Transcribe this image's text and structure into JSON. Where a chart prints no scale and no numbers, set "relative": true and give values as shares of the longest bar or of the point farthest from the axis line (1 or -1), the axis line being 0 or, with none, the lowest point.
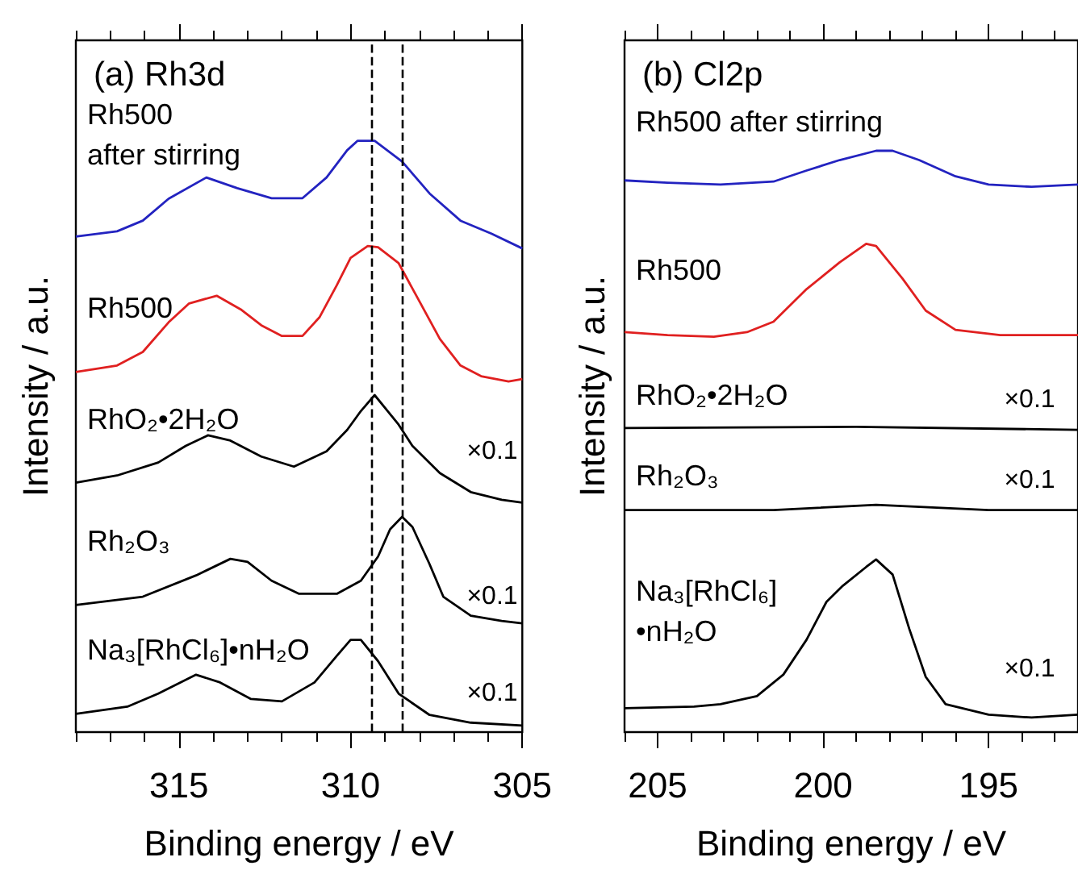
{
  "chart_data": [
    {
      "type": "line",
      "title": "(a) Rh3d",
      "xlabel": "Binding energy / eV",
      "ylabel": "Intensity / a.u.",
      "relative": true,
      "marker": "none",
      "xlim": [
        318,
        305
      ],
      "xticks": [
        {
          "value": 318,
          "label": null
        },
        {
          "value": 317,
          "label": null
        },
        {
          "value": 316,
          "label": null
        },
        315,
        {
          "value": 314,
          "label": null
        },
        {
          "value": 313,
          "label": null
        },
        {
          "value": 312,
          "label": null
        },
        {
          "value": 311,
          "label": null
        },
        310,
        {
          "value": 309,
          "label": null
        },
        {
          "value": 308,
          "label": null
        },
        {
          "value": 307,
          "label": null
        },
        {
          "value": 306,
          "label": null
        },
        305
      ],
      "series": [
        {
          "name": "Rh500\nafter stirring",
          "color": "#2323c0",
          "x": [
            318.0,
            316.8,
            316.05,
            315.3,
            314.2,
            313.3,
            312.3,
            311.4,
            310.7,
            310.1,
            309.8,
            309.3,
            308.5,
            307.7,
            306.8,
            305.9,
            305.0
          ],
          "values": [
            0.838,
            0.847,
            0.865,
            0.902,
            0.938,
            0.92,
            0.903,
            0.903,
            0.938,
            0.984,
            1.0,
            1.0,
            0.965,
            0.911,
            0.865,
            0.843,
            0.818
          ]
        },
        {
          "name": "Rh500",
          "color": "#e02020",
          "x": [
            318.0,
            316.8,
            316.05,
            315.3,
            314.7,
            313.9,
            313.2,
            312.6,
            312.0,
            311.4,
            310.9,
            310.4,
            310.0,
            309.5,
            309.2,
            308.6,
            308.0,
            307.4,
            306.8,
            306.2,
            305.4,
            305.0
          ],
          "values": [
            0.609,
            0.62,
            0.643,
            0.693,
            0.725,
            0.738,
            0.715,
            0.688,
            0.67,
            0.67,
            0.702,
            0.756,
            0.802,
            0.822,
            0.82,
            0.793,
            0.729,
            0.665,
            0.62,
            0.602,
            0.593,
            0.597
          ]
        },
        {
          "name": "RhO₂•2H₂O",
          "color": "#000000",
          "x": [
            318.0,
            316.8,
            315.6,
            314.8,
            314.15,
            313.5,
            312.6,
            311.65,
            310.7,
            310.1,
            309.7,
            309.3,
            308.6,
            308.2,
            307.4,
            306.5,
            305.6,
            305.0
          ],
          "values": [
            0.422,
            0.434,
            0.456,
            0.484,
            0.502,
            0.493,
            0.466,
            0.449,
            0.475,
            0.511,
            0.543,
            0.57,
            0.52,
            0.484,
            0.438,
            0.406,
            0.393,
            0.388
          ]
        },
        {
          "name": "Rh₂O₃",
          "color": "#000000",
          "x": [
            318.0,
            316.05,
            314.5,
            313.5,
            313.0,
            312.3,
            311.5,
            310.4,
            309.7,
            309.2,
            308.85,
            308.5,
            308.2,
            307.7,
            307.3,
            306.5,
            305.6,
            305.0
          ],
          "values": [
            0.215,
            0.229,
            0.265,
            0.293,
            0.288,
            0.256,
            0.234,
            0.234,
            0.256,
            0.297,
            0.343,
            0.364,
            0.347,
            0.284,
            0.229,
            0.197,
            0.188,
            0.184
          ]
        },
        {
          "name": "Na₃[RhCl₆]•nH₂O",
          "color": "#000000",
          "x": [
            318.0,
            316.5,
            315.6,
            314.5,
            313.8,
            312.9,
            312.0,
            311.05,
            310.4,
            310.0,
            309.7,
            309.2,
            308.6,
            307.7,
            306.5,
            305.0
          ],
          "values": [
            0.031,
            0.043,
            0.065,
            0.097,
            0.084,
            0.056,
            0.052,
            0.084,
            0.129,
            0.156,
            0.156,
            0.12,
            0.065,
            0.029,
            0.016,
            0.011
          ]
        }
      ],
      "ref_lines": [
        {
          "axis": "x",
          "value": 309.4,
          "color": "#000000",
          "line_style": "dashed"
        },
        {
          "axis": "x",
          "value": 308.5,
          "color": "#000000",
          "line_style": "dashed"
        }
      ],
      "annotations": [
        "×0.1",
        "×0.1",
        "×0.1"
      ]
    },
    {
      "type": "line",
      "title": "(b) Cl2p",
      "xlabel": "Binding energy / eV",
      "ylabel": "Intensity / a.u.",
      "relative": true,
      "marker": "none",
      "xlim": [
        206,
        192.3
      ],
      "xticks": [
        {
          "value": 206,
          "label": null
        },
        205,
        {
          "value": 204,
          "label": null
        },
        {
          "value": 203,
          "label": null
        },
        {
          "value": 202,
          "label": null
        },
        {
          "value": 201,
          "label": null
        },
        200,
        {
          "value": 199,
          "label": null
        },
        {
          "value": 198,
          "label": null
        },
        {
          "value": 197,
          "label": null
        },
        {
          "value": 196,
          "label": null
        },
        195,
        {
          "value": 194,
          "label": null
        },
        {
          "value": 193,
          "label": null
        }
      ],
      "series": [
        {
          "name": "Rh500 after stirring",
          "color": "#2323c0",
          "x": [
            206.0,
            204.7,
            203.1,
            201.5,
            200.5,
            199.5,
            198.4,
            197.9,
            197.1,
            196.0,
            195.0,
            193.7,
            192.3
          ],
          "values": [
            0.949,
            0.945,
            0.942,
            0.947,
            0.966,
            0.984,
            1.0,
            1.0,
            0.984,
            0.956,
            0.942,
            0.938,
            0.942
          ]
        },
        {
          "name": "Rh500",
          "color": "#e02020",
          "x": [
            206.0,
            204.7,
            203.3,
            202.3,
            201.5,
            200.5,
            199.5,
            198.7,
            198.4,
            197.6,
            196.9,
            196.0,
            194.65,
            193.35,
            192.3
          ],
          "values": [
            0.688,
            0.683,
            0.68,
            0.688,
            0.706,
            0.762,
            0.808,
            0.84,
            0.836,
            0.78,
            0.725,
            0.692,
            0.683,
            0.683,
            0.683
          ]
        },
        {
          "name": "RhO₂•2H₂O",
          "color": "#000000",
          "x": [
            206.0,
            199.0,
            192.3
          ],
          "values": [
            0.523,
            0.525,
            0.52
          ]
        },
        {
          "name": "Rh₂O₃",
          "color": "#000000",
          "x": [
            206.0,
            201.5,
            198.4,
            195.0,
            192.3
          ],
          "values": [
            0.382,
            0.382,
            0.391,
            0.382,
            0.382
          ]
        },
        {
          "name": "Na₃[RhCl₆]\n•nH₂O",
          "color": "#000000",
          "x": [
            206.0,
            203.9,
            203.1,
            202.0,
            201.2,
            200.5,
            199.9,
            199.4,
            198.7,
            198.4,
            197.9,
            197.4,
            196.9,
            196.3,
            195.0,
            193.7,
            192.3
          ],
          "values": [
            0.041,
            0.044,
            0.048,
            0.062,
            0.099,
            0.159,
            0.224,
            0.252,
            0.284,
            0.297,
            0.271,
            0.178,
            0.095,
            0.048,
            0.03,
            0.025,
            0.03
          ]
        }
      ],
      "annotations": [
        "×0.1",
        "×0.1",
        "×0.1"
      ]
    }
  ]
}
